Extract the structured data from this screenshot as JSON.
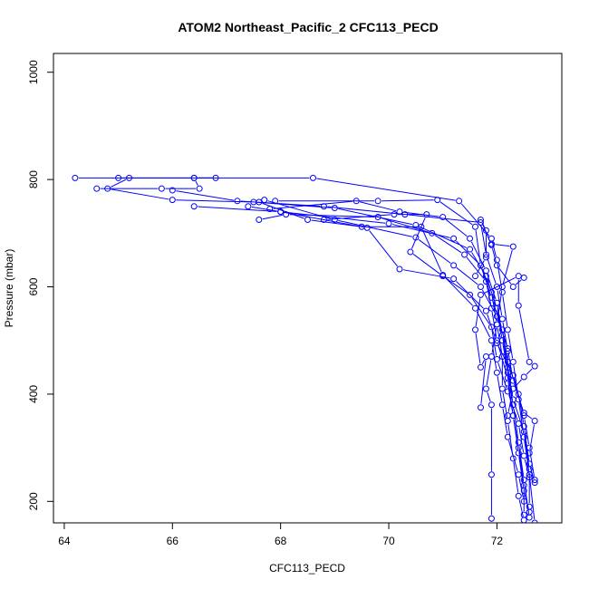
{
  "chart_data": {
    "type": "line",
    "title": "ATOM2 Northeast_Pacific_2 CFC113_PECD",
    "xlabel": "CFC113_PECD",
    "ylabel": "Pressure (mbar)",
    "xlim": [
      63.8,
      73.2
    ],
    "ylim": [
      1035,
      160
    ],
    "y_axis_inverted": true,
    "x_ticks": [
      64,
      66,
      68,
      70,
      72
    ],
    "y_ticks": [
      200,
      400,
      600,
      800,
      1000
    ],
    "grid": false,
    "legend": "none",
    "marker": "open-circle",
    "series_color": "#0000ff",
    "series": [
      {
        "points": [
          [
            64.2,
            803
          ],
          [
            66.4,
            803
          ],
          [
            68.6,
            803
          ],
          [
            71.3,
            760
          ],
          [
            71.9,
            690
          ],
          [
            72.0,
            650
          ],
          [
            72.1,
            590
          ],
          [
            72.2,
            520
          ],
          [
            72.3,
            460
          ],
          [
            72.4,
            390
          ],
          [
            72.5,
            320
          ],
          [
            72.6,
            250
          ],
          [
            72.7,
            160
          ]
        ]
      },
      {
        "points": [
          [
            65.2,
            803
          ],
          [
            64.8,
            783
          ],
          [
            66.0,
            762
          ],
          [
            67.5,
            758
          ],
          [
            69.0,
            747
          ],
          [
            70.5,
            715
          ],
          [
            71.5,
            670
          ],
          [
            71.8,
            620
          ],
          [
            72.0,
            560
          ],
          [
            72.1,
            500
          ],
          [
            72.2,
            440
          ],
          [
            72.3,
            380
          ],
          [
            72.4,
            310
          ],
          [
            72.5,
            240
          ],
          [
            72.6,
            170
          ]
        ]
      },
      {
        "points": [
          [
            64.6,
            783
          ],
          [
            65.8,
            783
          ],
          [
            66.5,
            783
          ],
          [
            66.4,
            803
          ],
          [
            66.8,
            803
          ],
          [
            65.0,
            803
          ]
        ]
      },
      {
        "points": [
          [
            66.4,
            750
          ],
          [
            68.0,
            740
          ],
          [
            70.0,
            718
          ],
          [
            71.2,
            690
          ],
          [
            71.7,
            640
          ],
          [
            71.9,
            590
          ],
          [
            72.0,
            530
          ],
          [
            72.1,
            470
          ],
          [
            72.1,
            410
          ],
          [
            72.2,
            350
          ],
          [
            72.3,
            280
          ],
          [
            72.4,
            210
          ],
          [
            72.5,
            165
          ]
        ]
      },
      {
        "points": [
          [
            67.6,
            725
          ],
          [
            68.1,
            735
          ],
          [
            69.8,
            730
          ],
          [
            70.8,
            700
          ],
          [
            71.4,
            660
          ],
          [
            71.8,
            610
          ],
          [
            71.9,
            560
          ],
          [
            72.0,
            500
          ],
          [
            72.2,
            430
          ],
          [
            72.3,
            360
          ],
          [
            72.4,
            300
          ],
          [
            72.5,
            230
          ],
          [
            72.5,
            175
          ]
        ]
      },
      {
        "points": [
          [
            66.0,
            780
          ],
          [
            67.2,
            760
          ],
          [
            68.8,
            750
          ],
          [
            70.3,
            735
          ],
          [
            71.7,
            720
          ],
          [
            71.8,
            660
          ],
          [
            72.0,
            600
          ],
          [
            72.1,
            540
          ],
          [
            72.2,
            480
          ],
          [
            72.2,
            420
          ],
          [
            72.3,
            360
          ],
          [
            72.4,
            290
          ],
          [
            72.5,
            220
          ],
          [
            72.6,
            180
          ]
        ]
      },
      {
        "points": [
          [
            67.8,
            745
          ],
          [
            69.4,
            760
          ],
          [
            70.2,
            740
          ],
          [
            71.0,
            730
          ],
          [
            71.5,
            690
          ],
          [
            71.8,
            630
          ],
          [
            72.0,
            570
          ],
          [
            72.1,
            510
          ],
          [
            72.2,
            450
          ],
          [
            72.3,
            390
          ],
          [
            72.5,
            330
          ],
          [
            72.6,
            260
          ],
          [
            72.6,
            190
          ]
        ]
      },
      {
        "points": [
          [
            67.6,
            758
          ],
          [
            68.5,
            725
          ],
          [
            69.5,
            712
          ],
          [
            70.6,
            712
          ],
          [
            71.0,
            622
          ],
          [
            71.6,
            560
          ],
          [
            71.9,
            500
          ],
          [
            72.0,
            440
          ],
          [
            72.1,
            380
          ],
          [
            72.2,
            320
          ],
          [
            72.4,
            250
          ],
          [
            72.5,
            200
          ]
        ]
      },
      {
        "points": [
          [
            67.9,
            760
          ],
          [
            69.8,
            760
          ],
          [
            70.9,
            762
          ],
          [
            71.6,
            712
          ],
          [
            71.7,
            640
          ],
          [
            71.9,
            580
          ],
          [
            72.1,
            520
          ],
          [
            72.2,
            460
          ],
          [
            72.4,
            400
          ],
          [
            72.5,
            340
          ],
          [
            72.6,
            270
          ],
          [
            72.7,
            235
          ]
        ]
      },
      {
        "points": [
          [
            67.4,
            750
          ],
          [
            68.0,
            740
          ],
          [
            69.6,
            710
          ],
          [
            70.2,
            633
          ],
          [
            71.2,
            615
          ],
          [
            71.8,
            555
          ],
          [
            72.0,
            495
          ],
          [
            72.3,
            435
          ],
          [
            72.5,
            360
          ],
          [
            72.6,
            300
          ],
          [
            72.7,
            240
          ]
        ]
      },
      {
        "points": [
          [
            68.8,
            725
          ],
          [
            70.1,
            735
          ],
          [
            70.7,
            735
          ],
          [
            70.4,
            665
          ],
          [
            71.0,
            620
          ],
          [
            71.5,
            585
          ],
          [
            71.9,
            525
          ],
          [
            72.0,
            465
          ],
          [
            72.2,
            405
          ],
          [
            72.4,
            345
          ],
          [
            72.5,
            285
          ],
          [
            72.6,
            245
          ]
        ]
      },
      {
        "points": [
          [
            67.7,
            762
          ],
          [
            69.0,
            725
          ],
          [
            70.5,
            692
          ],
          [
            71.2,
            640
          ],
          [
            71.7,
            600
          ],
          [
            72.0,
            545
          ],
          [
            72.2,
            485
          ],
          [
            72.3,
            425
          ],
          [
            72.5,
            365
          ],
          [
            72.7,
            350
          ],
          [
            72.6,
            290
          ]
        ]
      },
      {
        "points": [
          [
            71.9,
            168
          ],
          [
            71.9,
            250
          ],
          [
            71.9,
            380
          ],
          [
            71.8,
            410
          ],
          [
            71.9,
            470
          ],
          [
            72.0,
            530
          ],
          [
            72.1,
            600
          ],
          [
            72.3,
            675
          ],
          [
            71.9,
            680
          ]
        ]
      },
      {
        "points": [
          [
            71.7,
            375
          ],
          [
            71.8,
            470
          ],
          [
            71.7,
            450
          ],
          [
            71.6,
            520
          ],
          [
            71.7,
            585
          ],
          [
            72.4,
            620
          ],
          [
            72.4,
            565
          ],
          [
            72.6,
            460
          ],
          [
            72.7,
            452
          ],
          [
            72.5,
            432
          ],
          [
            72.3,
            410
          ],
          [
            72.2,
            360
          ]
        ]
      },
      {
        "points": [
          [
            71.6,
            620
          ],
          [
            71.8,
            655
          ],
          [
            71.8,
            705
          ],
          [
            71.7,
            725
          ],
          [
            71.9,
            678
          ],
          [
            72.0,
            640
          ],
          [
            72.3,
            600
          ],
          [
            72.5,
            617
          ]
        ]
      }
    ]
  }
}
